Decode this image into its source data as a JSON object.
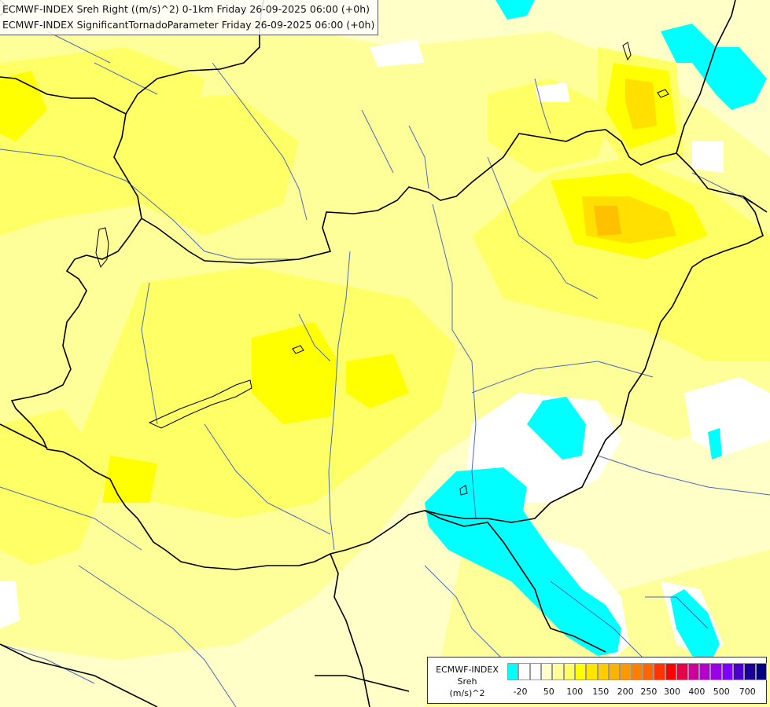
{
  "header": {
    "line1": "ECMWF-INDEX Sreh Right ((m/s)^2) 0-1km Friday 26-09-2025 06:00 (+0h)",
    "line2": "ECMWF-INDEX SignificantTornadoParameter Friday 26-09-2025 06:00 (+0h)"
  },
  "legend": {
    "source": "ECMWF-INDEX",
    "name": "Sreh",
    "unit": "(m/s)^2",
    "colors": [
      "#00ffff",
      "#ffffff",
      "#ffffff",
      "#ffffcc",
      "#ffff99",
      "#ffff66",
      "#ffff00",
      "#ffe600",
      "#ffcc00",
      "#ffb300",
      "#ff9900",
      "#ff7f00",
      "#ff6600",
      "#ff3300",
      "#ff0000",
      "#e6004c",
      "#cc0099",
      "#b300cc",
      "#9900e6",
      "#7f00ff",
      "#4c00cc",
      "#1a0099",
      "#00007f"
    ],
    "ticks": [
      "-20",
      "50",
      "100",
      "150",
      "200",
      "250",
      "300",
      "400",
      "500",
      "700"
    ]
  },
  "colors": {
    "background": "#ffffc8",
    "cyan": "#00ffff",
    "white_region": "#ffffff",
    "yellow_light": "#ffff99",
    "yellow": "#ffff66",
    "yellow_strong": "#ffff00",
    "gold": "#ffe000",
    "orange": "#ffc000",
    "border": "#000000",
    "river": "#4a6bb5"
  }
}
